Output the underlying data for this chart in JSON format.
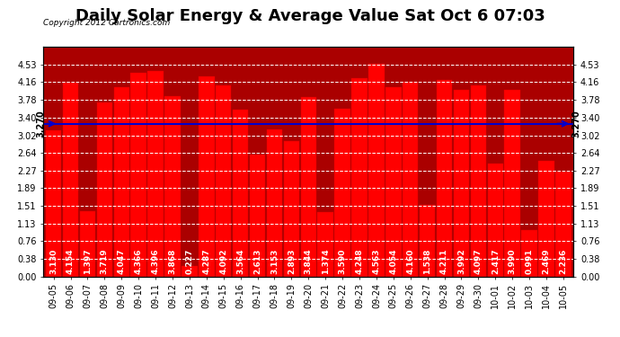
{
  "title": "Daily Solar Energy & Average Value Sat Oct 6 07:03",
  "copyright": "Copyright 2012 Cartronics.com",
  "average_value": 3.27,
  "average_label": "3.270",
  "categories": [
    "09-05",
    "09-06",
    "09-07",
    "09-08",
    "09-09",
    "09-10",
    "09-11",
    "09-12",
    "09-13",
    "09-14",
    "09-15",
    "09-16",
    "09-17",
    "09-18",
    "09-19",
    "09-20",
    "09-21",
    "09-22",
    "09-23",
    "09-24",
    "09-25",
    "09-26",
    "09-27",
    "09-28",
    "09-29",
    "09-30",
    "10-01",
    "10-02",
    "10-03",
    "10-04",
    "10-05"
  ],
  "values": [
    3.13,
    4.154,
    1.397,
    3.719,
    4.047,
    4.366,
    4.396,
    3.868,
    0.227,
    4.287,
    4.092,
    3.564,
    2.613,
    3.153,
    2.893,
    3.844,
    1.374,
    3.59,
    4.248,
    4.563,
    4.054,
    4.16,
    1.538,
    4.211,
    3.992,
    4.097,
    2.417,
    3.99,
    0.991,
    2.469,
    2.236
  ],
  "bar_color": "#ff0000",
  "bar_edge_color": "#dd0000",
  "avg_line_color": "#0000cc",
  "background_color": "#ffffff",
  "plot_bg_color": "#aa0000",
  "grid_color": "#ffffff",
  "ylim": [
    0,
    4.91
  ],
  "yticks": [
    0.0,
    0.38,
    0.76,
    1.13,
    1.51,
    1.89,
    2.27,
    2.64,
    3.02,
    3.4,
    3.78,
    4.16,
    4.53
  ],
  "title_fontsize": 13,
  "label_fontsize": 7,
  "value_fontsize": 6.5,
  "legend_avg_color": "#0000cc",
  "legend_daily_color": "#ff0000",
  "legend_text_color": "#ffffff"
}
